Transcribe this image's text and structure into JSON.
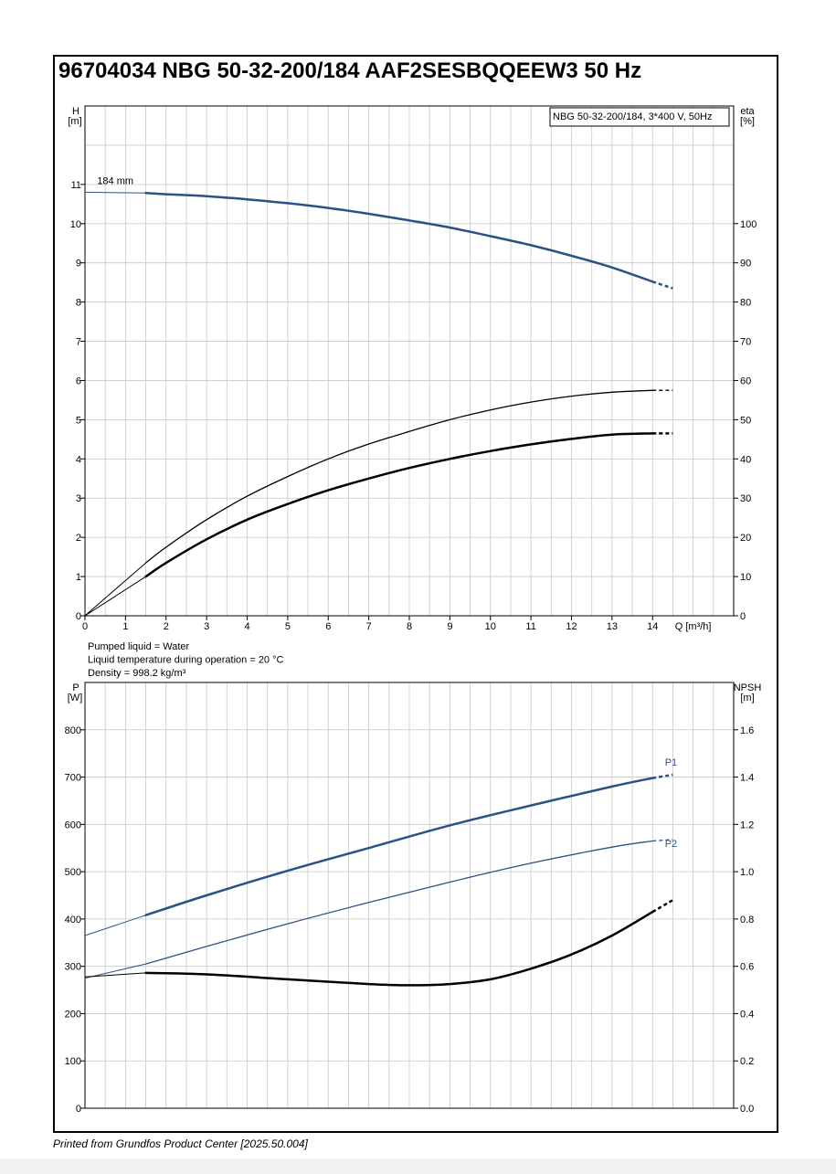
{
  "title": "96704034 NBG 50-32-200/184 AAF2SESBQQEEW3 50 Hz",
  "footer": "Printed from Grundfos Product Center [2025.50.004]",
  "colors": {
    "blue": "#2b5286",
    "black": "#000000",
    "grid": "#c8c8c8"
  },
  "chart_data": [
    {
      "type": "line",
      "legend_box": "NBG 50-32-200/184, 3*400 V, 50Hz",
      "left_axis": {
        "label_line1": "H",
        "label_line2": "[m]",
        "ylim": [
          0,
          13
        ],
        "ticks": [
          0,
          1,
          2,
          3,
          4,
          5,
          6,
          7,
          8,
          9,
          10,
          11
        ]
      },
      "right_axis": {
        "label_line1": "eta",
        "label_line2": "[%]",
        "ylim": [
          0,
          130
        ],
        "ticks": [
          0,
          10,
          20,
          30,
          40,
          50,
          60,
          70,
          80,
          90,
          100
        ]
      },
      "x_axis": {
        "label": "Q [m³/h]",
        "xlim": [
          0,
          16
        ],
        "ticks": [
          0,
          1,
          2,
          3,
          4,
          5,
          6,
          7,
          8,
          9,
          10,
          11,
          12,
          13,
          14
        ]
      },
      "grid": true,
      "info_lines": [
        "Pumped liquid = Water",
        "Liquid temperature during operation = 20 °C",
        "Density = 998.2 kg/m³"
      ],
      "series": [
        {
          "key": "H",
          "axis": "left",
          "color": "blue",
          "width": 2.5,
          "annotation": "184 mm",
          "thin": {
            "x": [
              0,
              1.5
            ],
            "y": [
              10.8,
              10.78
            ]
          },
          "solid": {
            "x": [
              1.5,
              2,
              3,
              4,
              5,
              6,
              7,
              8,
              9,
              10,
              11,
              12,
              13,
              14
            ],
            "y": [
              10.78,
              10.75,
              10.7,
              10.62,
              10.52,
              10.4,
              10.25,
              10.08,
              9.9,
              9.68,
              9.45,
              9.18,
              8.88,
              8.52
            ]
          },
          "dashed": {
            "x": [
              14,
              14.5
            ],
            "y": [
              8.52,
              8.35
            ]
          }
        },
        {
          "key": "eta-total",
          "axis": "right",
          "color": "black",
          "width": 2.5,
          "thin": {
            "x": [
              0,
              1.5
            ],
            "y": [
              0,
              10
            ]
          },
          "solid": {
            "x": [
              1.5,
              2,
              3,
              4,
              5,
              6,
              7,
              8,
              9,
              10,
              11,
              12,
              13,
              14
            ],
            "y": [
              10,
              13.5,
              19.5,
              24.5,
              28.5,
              32,
              35,
              37.7,
              40,
              42,
              43.7,
              45.1,
              46.2,
              46.5
            ]
          },
          "dashed": {
            "x": [
              14,
              14.5
            ],
            "y": [
              46.5,
              46.5
            ]
          }
        },
        {
          "key": "eta-hydraulic",
          "axis": "right",
          "color": "black",
          "width": 1.3,
          "thin": {
            "x": [
              0,
              1.5
            ],
            "y": [
              0,
              13.5
            ]
          },
          "solid": {
            "x": [
              1.5,
              2,
              3,
              4,
              5,
              6,
              7,
              8,
              9,
              10,
              11,
              12,
              13,
              14
            ],
            "y": [
              13.5,
              17.5,
              24.5,
              30.5,
              35.5,
              40,
              43.8,
              47,
              50,
              52.5,
              54.5,
              56,
              57,
              57.5
            ]
          },
          "dashed": {
            "x": [
              14,
              14.5
            ],
            "y": [
              57.5,
              57.5
            ]
          }
        }
      ]
    },
    {
      "type": "line",
      "left_axis": {
        "label_line1": "P",
        "label_line2": "[W]",
        "ylim": [
          0,
          900
        ],
        "ticks": [
          0,
          100,
          200,
          300,
          400,
          500,
          600,
          700,
          800
        ]
      },
      "right_axis": {
        "label_line1": "NPSH",
        "label_line2": "[m]",
        "ylim": [
          0,
          1.8
        ],
        "ticks": [
          "0.0",
          "0.2",
          "0.4",
          "0.6",
          "0.8",
          "1.0",
          "1.2",
          "1.4",
          "1.6"
        ]
      },
      "x_axis": {
        "xlim": [
          0,
          16
        ]
      },
      "grid": true,
      "series": [
        {
          "key": "P1",
          "axis": "left",
          "color": "blue",
          "width": 2.5,
          "label": "P1",
          "thin": {
            "x": [
              0,
              1.5
            ],
            "y": [
              365,
              408
            ]
          },
          "solid": {
            "x": [
              1.5,
              3,
              5,
              7,
              9,
              11,
              13,
              14
            ],
            "y": [
              408,
              450,
              502,
              550,
              598,
              640,
              680,
              698
            ]
          },
          "dashed": {
            "x": [
              14,
              14.5
            ],
            "y": [
              698,
              705
            ]
          }
        },
        {
          "key": "P2",
          "axis": "left",
          "color": "blue",
          "width": 1.3,
          "label": "P2",
          "thin": {
            "x": [
              0,
              1.5
            ],
            "y": [
              275,
              305
            ]
          },
          "solid": {
            "x": [
              1.5,
              3,
              5,
              7,
              9,
              11,
              13,
              14
            ],
            "y": [
              305,
              342,
              390,
              435,
              478,
              518,
              552,
              565
            ]
          },
          "dashed": {
            "x": [
              14,
              14.5
            ],
            "y": [
              565,
              568
            ]
          }
        },
        {
          "key": "NPSH",
          "axis": "right",
          "color": "black",
          "width": 2.5,
          "thin": {
            "x": [
              0,
              1.5
            ],
            "y": [
              0.555,
              0.572
            ]
          },
          "solid": {
            "x": [
              1.5,
              3,
              5,
              7,
              8,
              9,
              10,
              11,
              12,
              13,
              14
            ],
            "y": [
              0.572,
              0.566,
              0.545,
              0.525,
              0.52,
              0.525,
              0.545,
              0.59,
              0.65,
              0.73,
              0.83
            ]
          },
          "dashed": {
            "x": [
              14,
              14.5
            ],
            "y": [
              0.83,
              0.88
            ]
          }
        }
      ]
    }
  ]
}
